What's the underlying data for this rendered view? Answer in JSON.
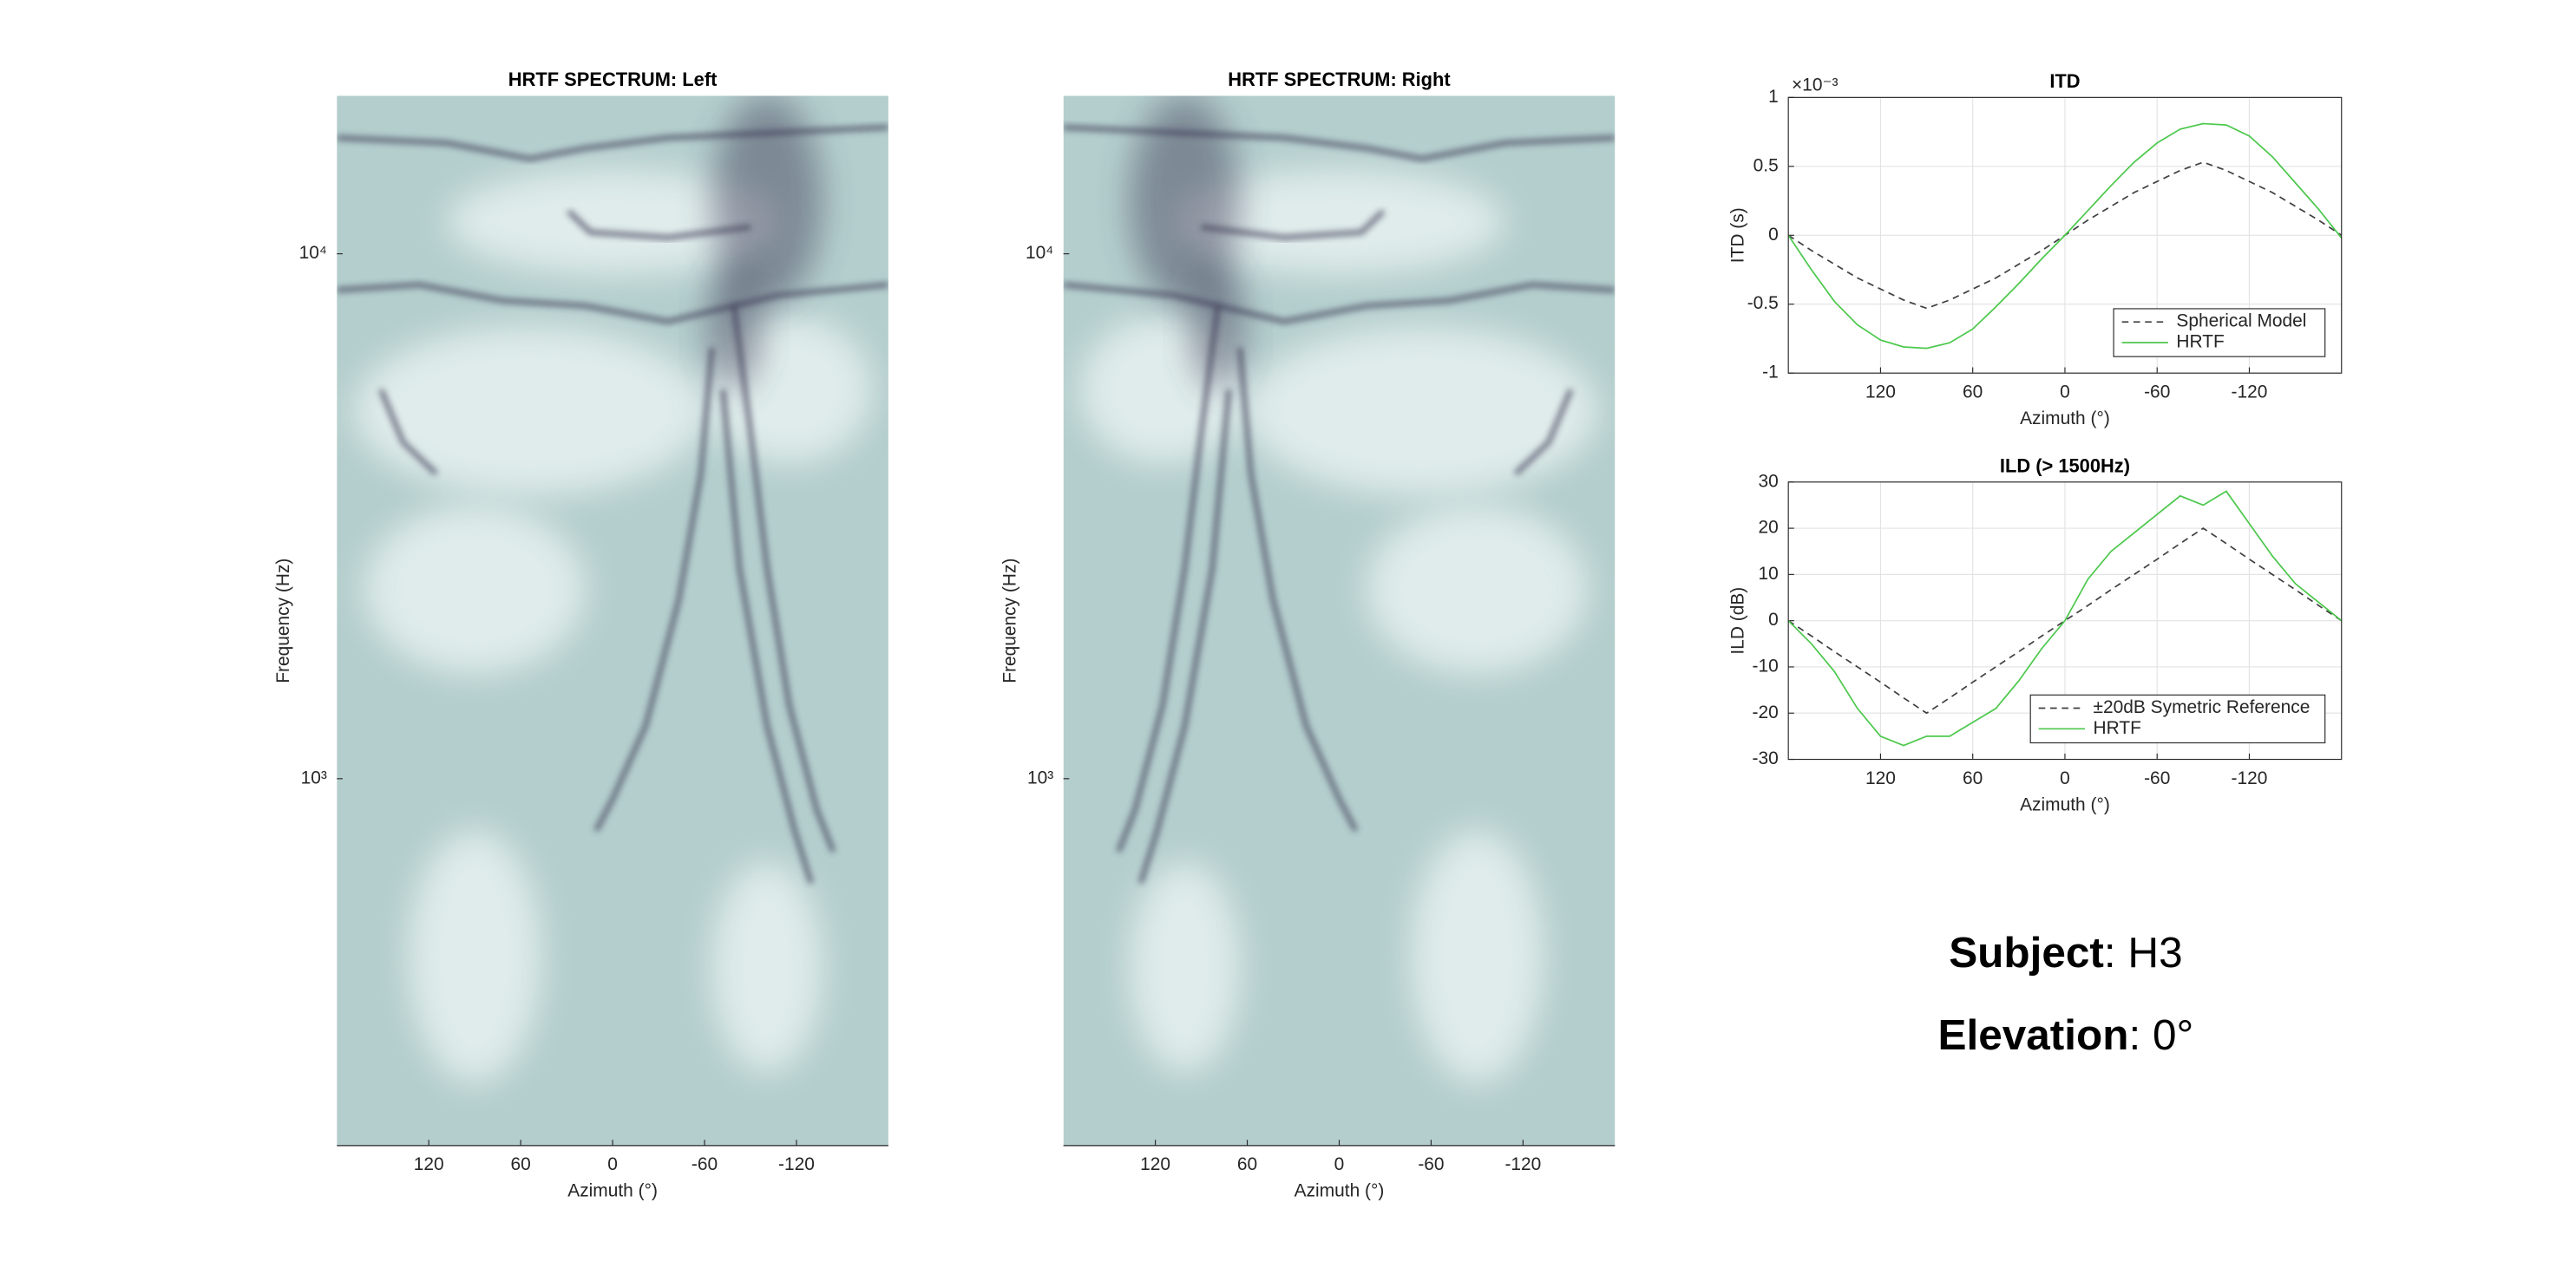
{
  "chart_data": [
    {
      "type": "spectrogram",
      "title": "HRTF SPECTRUM: Left",
      "xlabel": "Azimuth (°)",
      "ylabel": "Frequency (Hz)",
      "xlim": [
        180,
        -180
      ],
      "xticks": [
        120,
        60,
        0,
        -60,
        -120
      ],
      "ylim": [
        200,
        20000
      ],
      "log_y": true,
      "yticks": [
        {
          "value": 1000,
          "label": "10³"
        },
        {
          "value": 10000,
          "label": "10⁴"
        }
      ],
      "colormap": [
        "#eef6f5",
        "#b4cecd",
        "#3a3852"
      ],
      "mirror": false
    },
    {
      "type": "spectrogram",
      "title": "HRTF SPECTRUM: Right",
      "xlabel": "Azimuth (°)",
      "ylabel": "Frequency (Hz)",
      "xlim": [
        180,
        -180
      ],
      "xticks": [
        120,
        60,
        0,
        -60,
        -120
      ],
      "ylim": [
        200,
        20000
      ],
      "log_y": true,
      "yticks": [
        {
          "value": 1000,
          "label": "10³"
        },
        {
          "value": 10000,
          "label": "10⁴"
        }
      ],
      "colormap": [
        "#eef6f5",
        "#b4cecd",
        "#3a3852"
      ],
      "mirror": true
    },
    {
      "type": "line",
      "title": "ITD",
      "xlabel": "Azimuth (°)",
      "ylabel": "ITD (s)",
      "y_exponent_label": "×10⁻³",
      "x": [
        180,
        165,
        150,
        135,
        120,
        105,
        90,
        75,
        60,
        45,
        30,
        15,
        0,
        -15,
        -30,
        -45,
        -60,
        -75,
        -90,
        -105,
        -120,
        -135,
        -150,
        -165,
        -180
      ],
      "xlim": [
        180,
        -180
      ],
      "xticks": [
        120,
        60,
        0,
        -60,
        -120
      ],
      "ylim": [
        -1,
        1
      ],
      "yticks": [
        -1,
        -0.5,
        0,
        0.5,
        1
      ],
      "grid": true,
      "legend": "lower right",
      "series": [
        {
          "name": "Spherical Model",
          "color": "#404040",
          "dashed": true,
          "values": [
            0,
            -0.11,
            -0.21,
            -0.31,
            -0.39,
            -0.47,
            -0.53,
            -0.47,
            -0.39,
            -0.31,
            -0.21,
            -0.11,
            0,
            0.11,
            0.21,
            0.31,
            0.39,
            0.47,
            0.53,
            0.47,
            0.39,
            0.31,
            0.21,
            0.11,
            0
          ]
        },
        {
          "name": "HRTF",
          "color": "#4cc84c",
          "dashed": false,
          "values": [
            0,
            -0.25,
            -0.48,
            -0.65,
            -0.76,
            -0.81,
            -0.82,
            -0.78,
            -0.68,
            -0.52,
            -0.35,
            -0.17,
            0,
            0.18,
            0.36,
            0.53,
            0.67,
            0.77,
            0.81,
            0.8,
            0.72,
            0.57,
            0.38,
            0.19,
            -0.02
          ]
        }
      ]
    },
    {
      "type": "line",
      "title": "ILD (> 1500Hz)",
      "xlabel": "Azimuth (°)",
      "ylabel": "ILD (dB)",
      "x": [
        180,
        165,
        150,
        135,
        120,
        105,
        90,
        75,
        60,
        45,
        30,
        15,
        0,
        -15,
        -30,
        -45,
        -60,
        -75,
        -90,
        -105,
        -120,
        -135,
        -150,
        -165,
        -180
      ],
      "xlim": [
        180,
        -180
      ],
      "xticks": [
        120,
        60,
        0,
        -60,
        -120
      ],
      "ylim": [
        -30,
        30
      ],
      "yticks": [
        -30,
        -20,
        -10,
        0,
        10,
        20,
        30
      ],
      "grid": true,
      "legend": "lower right",
      "series": [
        {
          "name": "±20dB Symetric Reference",
          "color": "#404040",
          "dashed": true,
          "values": [
            0,
            -3.3,
            -6.7,
            -10,
            -13.3,
            -16.7,
            -20,
            -16.7,
            -13.3,
            -10,
            -6.7,
            -3.3,
            0,
            3.3,
            6.7,
            10,
            13.3,
            16.7,
            20,
            16.7,
            13.3,
            10,
            6.7,
            3.3,
            0
          ]
        },
        {
          "name": "HRTF",
          "color": "#4cc84c",
          "dashed": false,
          "values": [
            0,
            -5,
            -11,
            -19,
            -25,
            -27,
            -25,
            -25,
            -22,
            -19,
            -13,
            -6,
            0,
            9,
            15,
            19,
            23,
            27,
            25,
            28,
            21,
            14,
            8,
            4,
            0
          ]
        }
      ]
    }
  ],
  "info": [
    {
      "label": "Subject",
      "text": ": H3"
    },
    {
      "label": "Elevation",
      "text": ": 0°"
    }
  ]
}
